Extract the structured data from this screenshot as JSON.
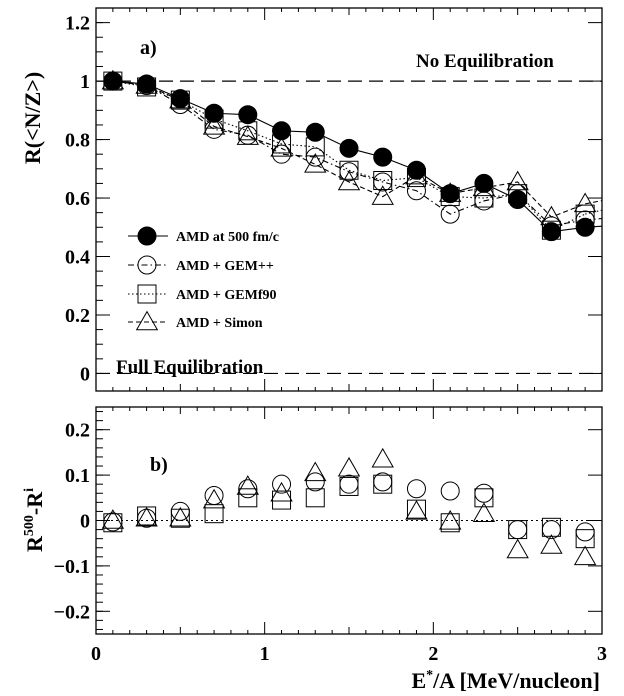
{
  "chart_data": [
    {
      "type": "line",
      "panel_label": "a)",
      "ylabel": "R(<N/Z>)",
      "xlim": [
        0,
        3
      ],
      "ylim": [
        -0.06,
        1.25
      ],
      "yticks": [
        "0",
        "0.2",
        "0.4",
        "0.6",
        "0.8",
        "1",
        "1.2"
      ],
      "x": [
        0.1,
        0.3,
        0.5,
        0.7,
        0.9,
        1.1,
        1.3,
        1.5,
        1.7,
        1.9,
        2.1,
        2.3,
        2.5,
        2.7,
        2.9
      ],
      "series": [
        {
          "name": "AMD  at 500 fm/c",
          "marker": "filled-circle",
          "line": "solid",
          "values": [
            1.0,
            0.99,
            0.94,
            0.89,
            0.885,
            0.83,
            0.825,
            0.77,
            0.74,
            0.695,
            0.615,
            0.65,
            0.595,
            0.485,
            0.5
          ]
        },
        {
          "name": "AMD + GEM++",
          "marker": "open-circle",
          "line": "dashdot",
          "values": [
            1.0,
            0.985,
            0.92,
            0.835,
            0.815,
            0.75,
            0.74,
            0.69,
            0.655,
            0.625,
            0.545,
            0.59,
            0.615,
            0.505,
            0.525
          ]
        },
        {
          "name": "AMD + GEMf90",
          "marker": "open-square",
          "line": "dotted",
          "values": [
            1.0,
            0.98,
            0.935,
            0.87,
            0.83,
            0.785,
            0.775,
            0.695,
            0.66,
            0.67,
            0.605,
            0.6,
            0.615,
            0.49,
            0.545
          ]
        },
        {
          "name": "AMD +  Simon",
          "marker": "open-triangle",
          "line": "dashed",
          "values": [
            1.0,
            0.985,
            0.935,
            0.845,
            0.81,
            0.77,
            0.715,
            0.655,
            0.605,
            0.675,
            0.615,
            0.635,
            0.655,
            0.535,
            0.58
          ]
        }
      ],
      "reference_lines": [
        {
          "y": 1,
          "label": "No Equilibration"
        },
        {
          "y": 0,
          "label": "Full Equilibration"
        }
      ]
    },
    {
      "type": "scatter",
      "panel_label": "b)",
      "ylabel": "R500-Ri",
      "ylabel_main": "R",
      "ylabel_sup1": "500",
      "ylabel_mid": "-R",
      "ylabel_sup2": "i",
      "xlabel_main": "E",
      "xlabel_sup": "*",
      "xlabel_rest": "/A [MeV/nucleon]",
      "xlim": [
        0,
        3
      ],
      "ylim": [
        -0.25,
        0.25
      ],
      "xticks": [
        "0",
        "1",
        "2",
        "3"
      ],
      "yticks": [
        "−0.2",
        "−0.1",
        "0",
        "0.1",
        "0.2"
      ],
      "x": [
        0.1,
        0.3,
        0.5,
        0.7,
        0.9,
        1.1,
        1.3,
        1.5,
        1.7,
        1.9,
        2.1,
        2.3,
        2.5,
        2.7,
        2.9
      ],
      "series": [
        {
          "name": "AMD + GEM++",
          "marker": "open-circle",
          "values": [
            -0.003,
            0.005,
            0.02,
            0.055,
            0.07,
            0.08,
            0.085,
            0.08,
            0.085,
            0.07,
            0.065,
            0.06,
            -0.02,
            -0.02,
            -0.025
          ]
        },
        {
          "name": "AMD + GEMf90",
          "marker": "open-square",
          "values": [
            -0.005,
            0.01,
            0.005,
            0.015,
            0.05,
            0.045,
            0.05,
            0.075,
            0.08,
            0.025,
            -0.005,
            0.05,
            -0.02,
            -0.015,
            -0.04
          ]
        },
        {
          "name": "AMD +  Simon",
          "marker": "open-triangle",
          "values": [
            0.0,
            0.005,
            0.005,
            0.045,
            0.075,
            0.06,
            0.105,
            0.115,
            0.135,
            0.02,
            -0.002,
            0.015,
            -0.065,
            -0.055,
            -0.08
          ]
        }
      ],
      "reference_lines": [
        {
          "y": 0,
          "style": "dotted"
        }
      ]
    }
  ]
}
